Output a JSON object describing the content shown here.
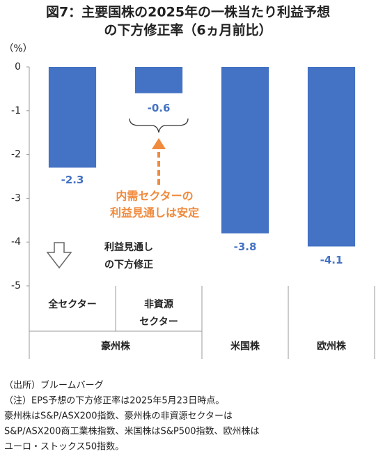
{
  "chart_data": {
    "type": "bar",
    "title": [
      "図7：主要国株の2025年の一株当たり利益予想",
      "の下方修正率（6ヵ月前比）"
    ],
    "y_label": "（%）",
    "categories": [
      [
        "全セクター"
      ],
      [
        "非資源",
        "セクター"
      ],
      null,
      null
    ],
    "groups": [
      "豪州株",
      "米国株",
      "欧州株"
    ],
    "values": [
      -2.3,
      -0.6,
      -3.8,
      -4.1
    ],
    "color": "#4472c4",
    "ylim": [
      0,
      -5
    ],
    "yticks": [
      0,
      -1,
      -2,
      -3,
      -4,
      -5
    ],
    "annotations": {
      "stable": [
        "内需セクターの",
        "利益見通しは安定"
      ],
      "downgrade": [
        "利益見通し",
        "の下方修正"
      ]
    },
    "notes": [
      "（出所）ブルームバーグ",
      "（注）EPS予想の下方修正率は2025年5月23日時点。",
      "豪州株はS&P/ASX200指数、豪州株の非資源セクターは",
      "S&P/ASX200商工業株指数、米国株はS&P500指数、欧州株は",
      "ユーロ・ストックス50指数。"
    ]
  }
}
